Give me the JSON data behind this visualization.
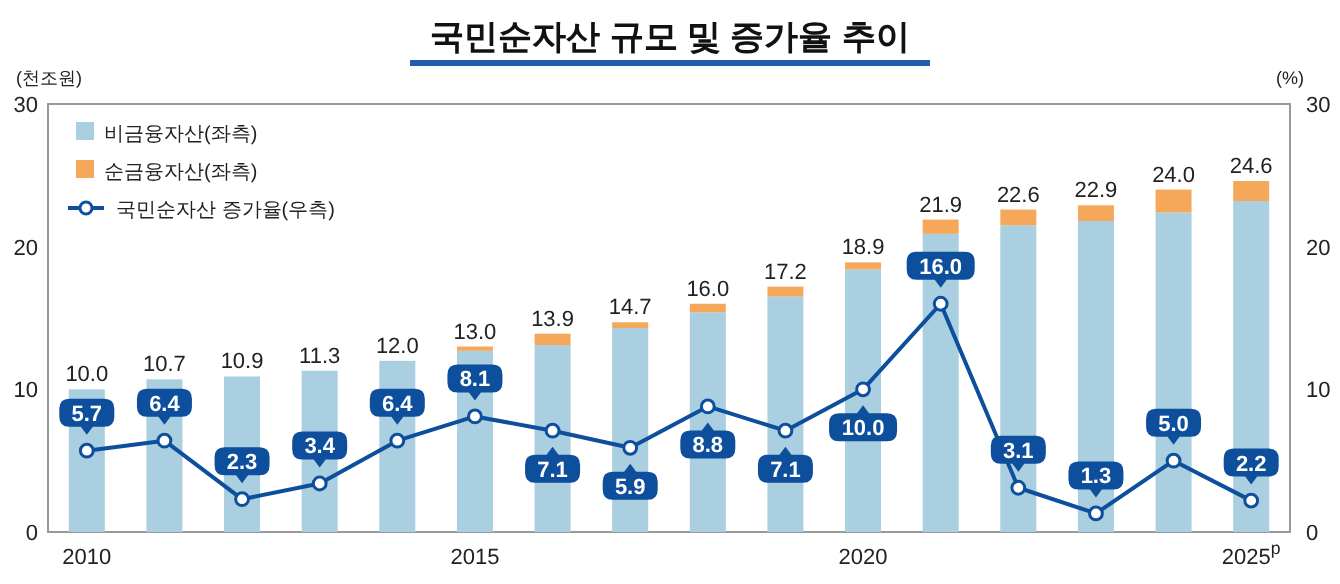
{
  "chart_data": {
    "type": "bar",
    "title": "국민순자산 규모 및 증가율 추이",
    "ylabel": "(천조원)",
    "y2label": "(%)",
    "categories": [
      "2010",
      null,
      null,
      null,
      null,
      "2015",
      null,
      null,
      null,
      null,
      "2020",
      null,
      null,
      null,
      null,
      "2025$^{p}$"
    ],
    "stacked": true,
    "series": [
      {
        "name": "비금융자산(좌측)",
        "color": "#a9cfe0",
        "values": [
          10.0,
          10.7,
          10.9,
          11.3,
          12.0,
          12.7,
          13.1,
          14.3,
          15.4,
          16.5,
          18.4,
          20.9,
          21.5,
          21.8,
          22.4,
          23.2
        ]
      },
      {
        "name": "순금융자산(좌측)",
        "color": "#f5a85a",
        "values": [
          0,
          0,
          0,
          0,
          0,
          0.3,
          0.8,
          0.4,
          0.6,
          0.7,
          0.5,
          1.0,
          1.1,
          1.1,
          1.6,
          1.4
        ]
      },
      {
        "name": "국민순자산 증가율(우측)",
        "type": "line",
        "color": "#0d4f9c",
        "marker": "circle",
        "values": [
          5.7,
          6.4,
          2.3,
          3.4,
          6.4,
          8.1,
          7.1,
          5.9,
          8.8,
          7.1,
          10.0,
          16.0,
          3.1,
          1.3,
          5.0,
          2.2
        ],
        "value_labels": [
          "5.7",
          "6.4",
          "2.3",
          "3.4",
          "6.4",
          "8.1",
          "7.1",
          "5.9",
          "8.8",
          "7.1",
          "10.0",
          "16.0",
          "3.1",
          "1.3",
          "5.0",
          "2.2"
        ]
      }
    ],
    "totals": [
      "10.0",
      "10.7",
      "10.9",
      "11.3",
      "12.0",
      "13.0",
      "13.9",
      "14.7",
      "16.0",
      "17.2",
      "18.9",
      "21.9",
      "22.6",
      "22.9",
      "24.0",
      "24.6"
    ],
    "ylim": [
      0,
      30
    ],
    "yticks": [
      0,
      10,
      20,
      30
    ],
    "y2lim": [
      0,
      30
    ],
    "y2ticks": [
      0,
      10,
      20,
      30
    ],
    "grid": false,
    "legend": "top left"
  }
}
